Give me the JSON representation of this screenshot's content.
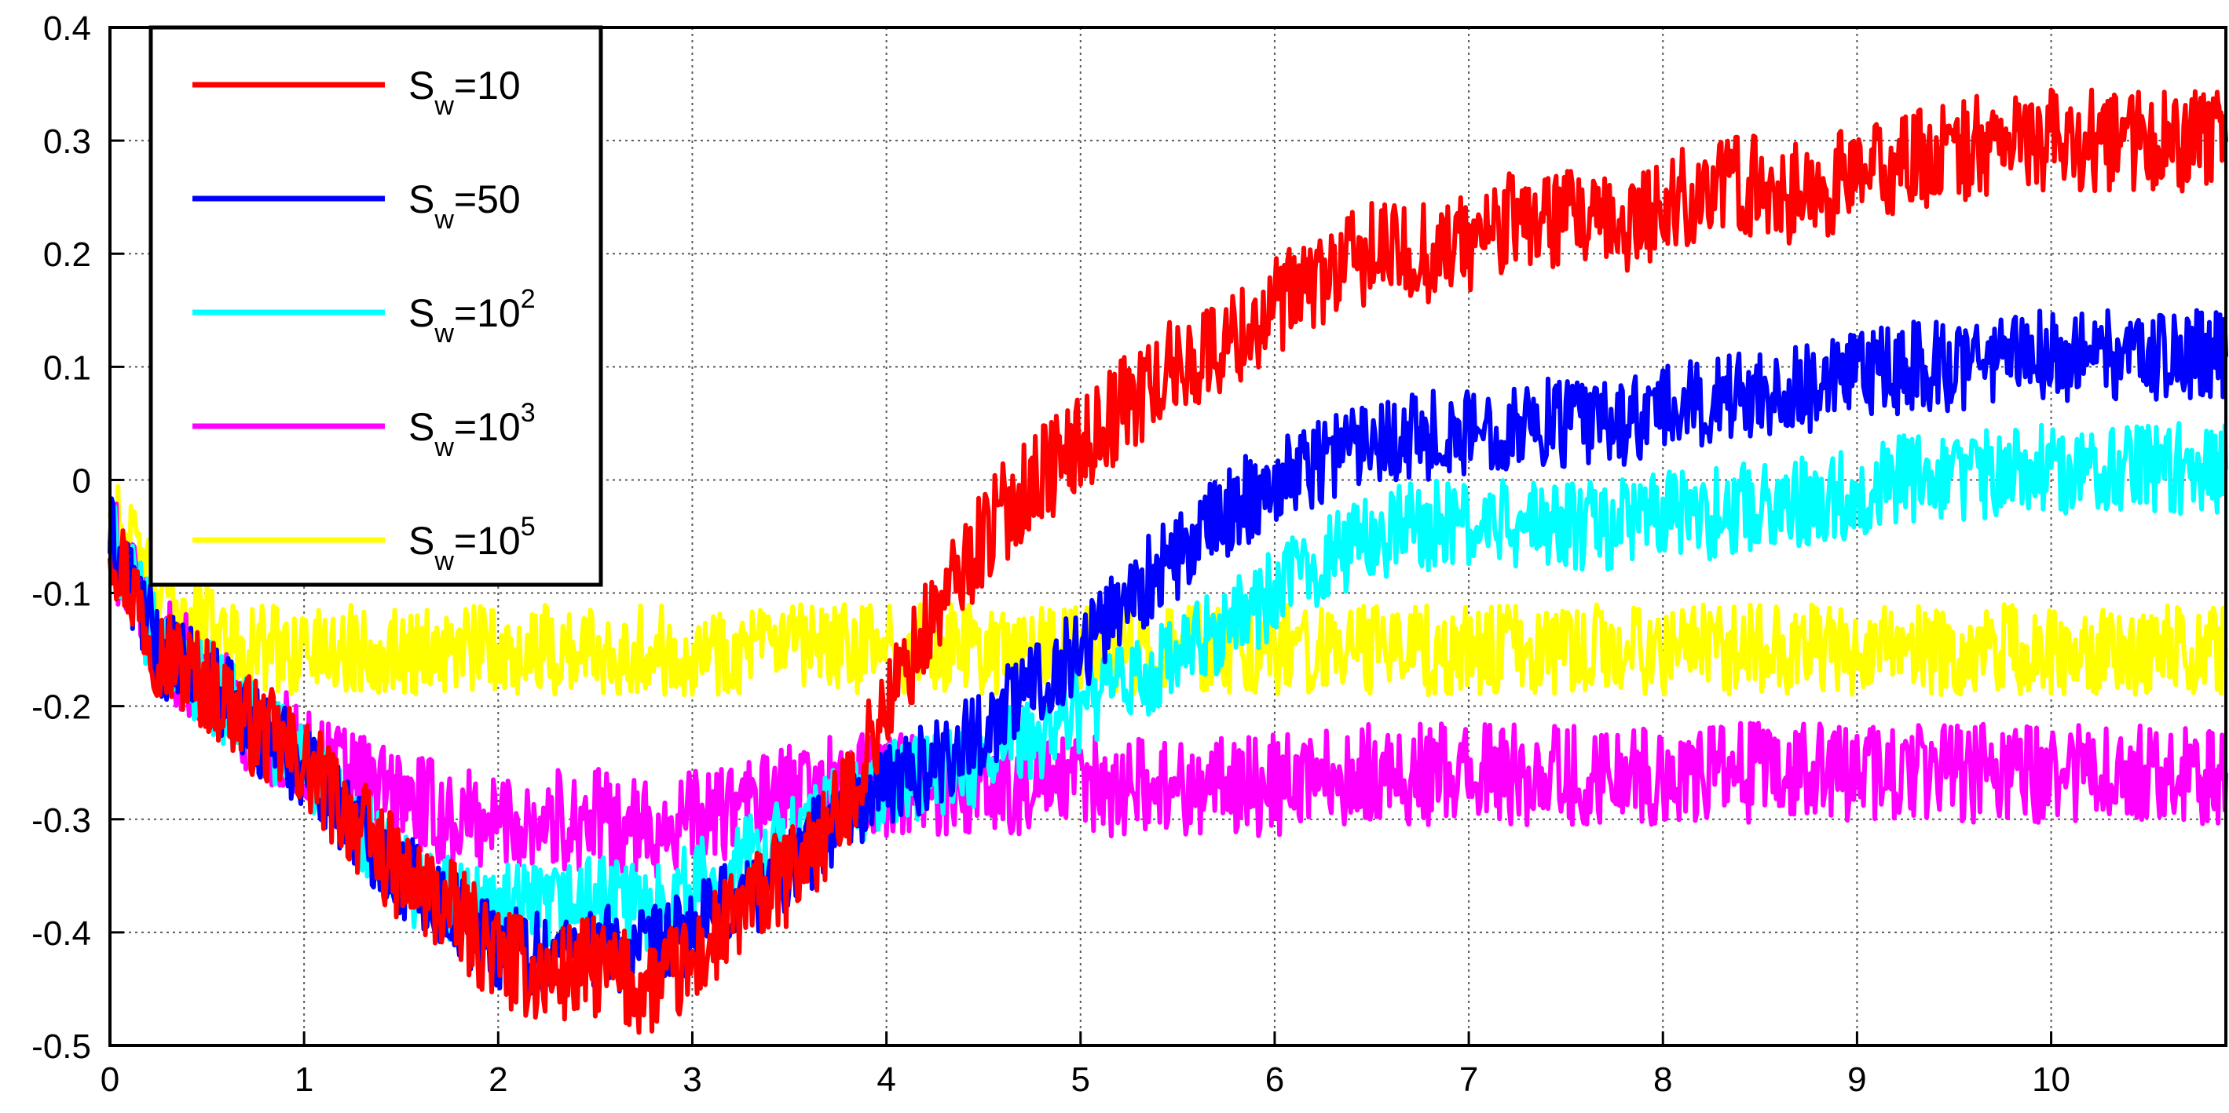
{
  "chart_data": {
    "type": "line",
    "title": "",
    "xlabel": "",
    "ylabel": "",
    "xlim": [
      0,
      10.9
    ],
    "ylim": [
      -0.5,
      0.4
    ],
    "x_ticks": [
      0,
      1,
      2,
      3,
      4,
      5,
      6,
      7,
      8,
      9,
      10
    ],
    "y_ticks": [
      -0.5,
      -0.4,
      -0.3,
      -0.2,
      -0.1,
      0,
      0.1,
      0.2,
      0.3,
      0.4
    ],
    "y_tick_labels": [
      "-0.5",
      "-0.4",
      "-0.3",
      "-0.2",
      "-0.1",
      "0",
      "0.1",
      "0.2",
      "0.3",
      "0.4"
    ],
    "grid": true,
    "legend_position": "top-left",
    "series": [
      {
        "name": "Sw=10",
        "label_base": "S",
        "label_sub": "w",
        "label_rest": "=10",
        "label_sup": "",
        "color": "#ff0000",
        "x": [
          0,
          0.25,
          0.5,
          0.75,
          1,
          1.25,
          1.5,
          1.75,
          2,
          2.25,
          2.5,
          2.75,
          3,
          3.25,
          3.5,
          3.75,
          4,
          4.25,
          4.5,
          4.75,
          5,
          5.25,
          5.5,
          5.75,
          6,
          6.25,
          6.5,
          6.75,
          7,
          7.25,
          7.5,
          7.75,
          8,
          8.25,
          8.5,
          8.75,
          9,
          9.25,
          9.5,
          9.75,
          10,
          10.25,
          10.5,
          10.75,
          10.9
        ],
        "y": [
          -0.05,
          -0.15,
          -0.18,
          -0.22,
          -0.25,
          -0.3,
          -0.35,
          -0.38,
          -0.42,
          -0.44,
          -0.43,
          -0.45,
          -0.43,
          -0.38,
          -0.35,
          -0.3,
          -0.2,
          -0.12,
          -0.05,
          0.0,
          0.03,
          0.07,
          0.1,
          0.12,
          0.15,
          0.18,
          0.2,
          0.2,
          0.21,
          0.23,
          0.23,
          0.22,
          0.24,
          0.26,
          0.26,
          0.25,
          0.27,
          0.28,
          0.29,
          0.3,
          0.3,
          0.3,
          0.3,
          0.3,
          0.3
        ]
      },
      {
        "name": "Sw=50",
        "label_base": "S",
        "label_sub": "w",
        "label_rest": "=50",
        "label_sup": "",
        "color": "#0000ff",
        "x": [
          0,
          0.25,
          0.5,
          0.75,
          1,
          1.25,
          1.5,
          1.75,
          2,
          2.25,
          2.5,
          2.75,
          3,
          3.25,
          3.5,
          3.75,
          4,
          4.25,
          4.5,
          4.75,
          5,
          5.25,
          5.5,
          5.75,
          6,
          6.25,
          6.5,
          6.75,
          7,
          7.25,
          7.5,
          7.75,
          8,
          8.25,
          8.5,
          8.75,
          9,
          9.25,
          9.5,
          9.75,
          10,
          10.25,
          10.5,
          10.75,
          10.9
        ],
        "y": [
          -0.05,
          -0.15,
          -0.18,
          -0.22,
          -0.25,
          -0.3,
          -0.35,
          -0.38,
          -0.41,
          -0.42,
          -0.41,
          -0.42,
          -0.4,
          -0.37,
          -0.34,
          -0.3,
          -0.27,
          -0.25,
          -0.22,
          -0.18,
          -0.15,
          -0.1,
          -0.07,
          -0.03,
          0.0,
          0.02,
          0.04,
          0.04,
          0.04,
          0.05,
          0.05,
          0.05,
          0.06,
          0.07,
          0.08,
          0.08,
          0.09,
          0.1,
          0.1,
          0.11,
          0.11,
          0.11,
          0.11,
          0.11,
          0.11
        ]
      },
      {
        "name": "Sw=10^2",
        "label_base": "S",
        "label_sub": "w",
        "label_rest": "=10",
        "label_sup": "2",
        "color": "#00ffff",
        "x": [
          0,
          0.25,
          0.5,
          0.75,
          1,
          1.25,
          1.5,
          1.75,
          2,
          2.25,
          2.5,
          2.75,
          3,
          3.25,
          3.5,
          3.75,
          4,
          4.25,
          4.5,
          4.75,
          5,
          5.25,
          5.5,
          5.75,
          6,
          6.25,
          6.5,
          6.75,
          7,
          7.25,
          7.5,
          7.75,
          8,
          8.25,
          8.5,
          8.75,
          9,
          9.25,
          9.5,
          9.75,
          10,
          10.25,
          10.5,
          10.75,
          10.9
        ],
        "y": [
          -0.05,
          -0.15,
          -0.18,
          -0.22,
          -0.25,
          -0.3,
          -0.35,
          -0.37,
          -0.38,
          -0.38,
          -0.37,
          -0.38,
          -0.36,
          -0.34,
          -0.32,
          -0.29,
          -0.27,
          -0.26,
          -0.25,
          -0.23,
          -0.2,
          -0.18,
          -0.16,
          -0.13,
          -0.1,
          -0.07,
          -0.05,
          -0.04,
          -0.04,
          -0.04,
          -0.04,
          -0.04,
          -0.03,
          -0.03,
          -0.02,
          -0.02,
          -0.01,
          0.0,
          0.0,
          0.01,
          0.01,
          0.01,
          0.01,
          0.01,
          0.01
        ]
      },
      {
        "name": "Sw=10^3",
        "label_base": "S",
        "label_sub": "w",
        "label_rest": "=10",
        "label_sup": "3",
        "color": "#ff00ff",
        "x": [
          0,
          0.25,
          0.5,
          0.75,
          1,
          1.25,
          1.5,
          1.75,
          2,
          2.25,
          2.5,
          2.75,
          3,
          3.25,
          3.5,
          3.75,
          4,
          4.25,
          4.5,
          4.75,
          5,
          5.25,
          5.5,
          5.75,
          6,
          6.25,
          6.5,
          6.75,
          7,
          7.25,
          7.5,
          7.75,
          8,
          8.25,
          8.5,
          8.75,
          9,
          9.25,
          9.5,
          9.75,
          10,
          10.25,
          10.5,
          10.75,
          10.9
        ],
        "y": [
          -0.05,
          -0.14,
          -0.18,
          -0.22,
          -0.24,
          -0.26,
          -0.28,
          -0.3,
          -0.3,
          -0.3,
          -0.3,
          -0.31,
          -0.3,
          -0.29,
          -0.28,
          -0.27,
          -0.27,
          -0.27,
          -0.27,
          -0.27,
          -0.27,
          -0.27,
          -0.27,
          -0.27,
          -0.27,
          -0.26,
          -0.26,
          -0.26,
          -0.26,
          -0.26,
          -0.26,
          -0.26,
          -0.26,
          -0.26,
          -0.26,
          -0.26,
          -0.26,
          -0.26,
          -0.26,
          -0.26,
          -0.26,
          -0.26,
          -0.26,
          -0.26,
          -0.26
        ]
      },
      {
        "name": "Sw=10^5",
        "label_base": "S",
        "label_sub": "w",
        "label_rest": "=10",
        "label_sup": "5",
        "color": "#ffff00",
        "x": [
          0,
          0.25,
          0.5,
          0.75,
          1,
          1.25,
          1.5,
          1.75,
          2,
          2.25,
          2.5,
          2.75,
          3,
          3.25,
          3.5,
          3.75,
          4,
          4.25,
          4.5,
          4.75,
          5,
          5.25,
          5.5,
          5.75,
          6,
          6.25,
          6.5,
          6.75,
          7,
          7.25,
          7.5,
          7.75,
          8,
          8.25,
          8.5,
          8.75,
          9,
          9.25,
          9.5,
          9.75,
          10,
          10.25,
          10.5,
          10.75,
          10.9
        ],
        "y": [
          -0.03,
          -0.1,
          -0.13,
          -0.15,
          -0.15,
          -0.15,
          -0.15,
          -0.15,
          -0.15,
          -0.15,
          -0.15,
          -0.15,
          -0.15,
          -0.15,
          -0.15,
          -0.15,
          -0.15,
          -0.15,
          -0.15,
          -0.15,
          -0.15,
          -0.15,
          -0.15,
          -0.15,
          -0.15,
          -0.15,
          -0.15,
          -0.15,
          -0.15,
          -0.15,
          -0.15,
          -0.15,
          -0.15,
          -0.15,
          -0.15,
          -0.15,
          -0.15,
          -0.15,
          -0.15,
          -0.15,
          -0.15,
          -0.15,
          -0.15,
          -0.15,
          -0.15
        ]
      }
    ]
  }
}
